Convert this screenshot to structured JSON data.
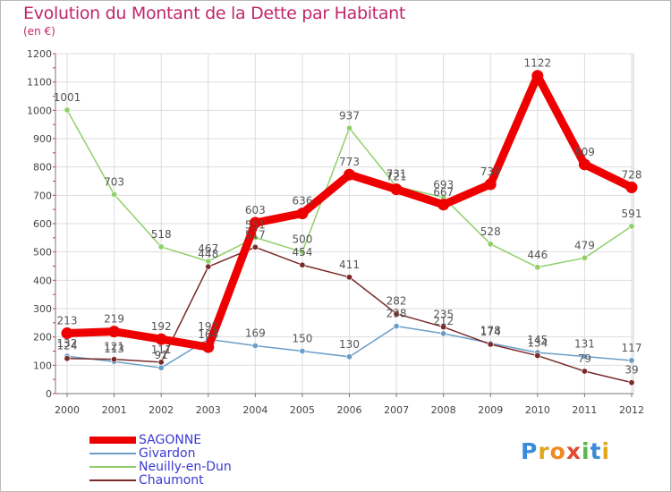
{
  "header": {
    "title": "Evolution du Montant de la Dette par Habitant",
    "subtitle": "(en €)"
  },
  "logo": {
    "text": "Proxiti"
  },
  "chart_data": {
    "type": "line",
    "title": "Evolution du Montant de la Dette par Habitant",
    "subtitle": "(en €)",
    "xlabel": "",
    "ylabel": "",
    "x": [
      "2000",
      "2001",
      "2002",
      "2003",
      "2004",
      "2005",
      "2006",
      "2007",
      "2008",
      "2009",
      "2010",
      "2011",
      "2012"
    ],
    "ylim": [
      0,
      1200
    ],
    "yticks": [
      0,
      100,
      200,
      300,
      400,
      500,
      600,
      700,
      800,
      900,
      1000,
      1100,
      1200
    ],
    "grid": true,
    "legend_position": "bottom-left",
    "series": [
      {
        "name": "SAGONNE",
        "color": "#ee0000",
        "values": [
          213,
          219,
          192,
          164,
          603,
          636,
          773,
          721,
          667,
          739,
          1122,
          809,
          728
        ]
      },
      {
        "name": "Givardon",
        "color": "#6a9ec9",
        "values": [
          132,
          113,
          91,
          192,
          169,
          150,
          130,
          238,
          212,
          178,
          145,
          131,
          117
        ]
      },
      {
        "name": "Neuilly-en-Dun",
        "color": "#8fd06a",
        "values": [
          1001,
          703,
          518,
          467,
          551,
          500,
          937,
          731,
          693,
          528,
          446,
          479,
          591
        ]
      },
      {
        "name": "Chaumont",
        "color": "#7a2a2a",
        "values": [
          124,
          121,
          111,
          448,
          517,
          454,
          411,
          282,
          235,
          174,
          134,
          79,
          39
        ]
      }
    ]
  }
}
